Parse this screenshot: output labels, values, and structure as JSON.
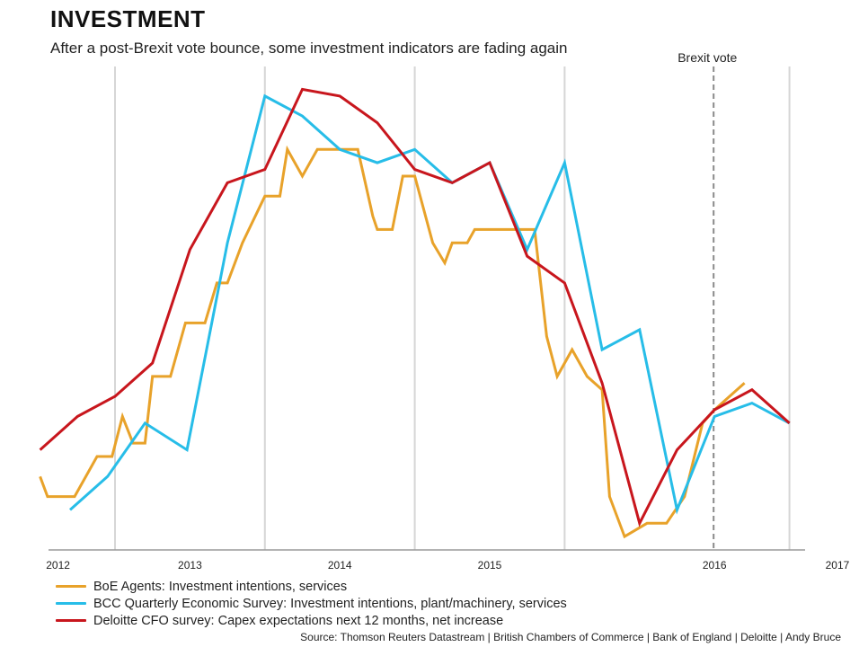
{
  "chart_data": {
    "type": "line",
    "title": "INVESTMENT",
    "subtitle": "After a post-Brexit vote bounce, some investment indicators are fading again",
    "x_unit": "quarter",
    "x_ticks": [
      "2012",
      "2013",
      "2014",
      "2015",
      "2016",
      "2017"
    ],
    "grid": "vertical",
    "y_axis_labels": false,
    "annotation": {
      "label": "Brexit vote",
      "x": 2016.0
    },
    "series": [
      {
        "name": "BoE Agents: Investment intentions, services",
        "color": "#e8a22a",
        "points": [
          [
            2011.5,
            1.1
          ],
          [
            2011.55,
            0.8
          ],
          [
            2011.73,
            0.8
          ],
          [
            2011.88,
            1.4
          ],
          [
            2011.98,
            1.4
          ],
          [
            2012.05,
            2.0
          ],
          [
            2012.12,
            1.6
          ],
          [
            2012.2,
            1.6
          ],
          [
            2012.25,
            2.6
          ],
          [
            2012.37,
            2.6
          ],
          [
            2012.47,
            3.4
          ],
          [
            2012.6,
            3.4
          ],
          [
            2012.68,
            4.0
          ],
          [
            2012.75,
            4.0
          ],
          [
            2012.85,
            4.6
          ],
          [
            2013.0,
            5.3
          ],
          [
            2013.1,
            5.3
          ],
          [
            2013.15,
            6.0
          ],
          [
            2013.25,
            5.6
          ],
          [
            2013.35,
            6.0
          ],
          [
            2013.5,
            6.0
          ],
          [
            2013.62,
            6.0
          ],
          [
            2013.72,
            5.0
          ],
          [
            2013.75,
            4.8
          ],
          [
            2013.85,
            4.8
          ],
          [
            2013.92,
            5.6
          ],
          [
            2014.0,
            5.6
          ],
          [
            2014.12,
            4.6
          ],
          [
            2014.2,
            4.3
          ],
          [
            2014.25,
            4.6
          ],
          [
            2014.35,
            4.6
          ],
          [
            2014.4,
            4.8
          ],
          [
            2014.55,
            4.8
          ],
          [
            2014.8,
            4.8
          ],
          [
            2014.88,
            3.2
          ],
          [
            2014.95,
            2.6
          ],
          [
            2015.05,
            3.0
          ],
          [
            2015.15,
            2.6
          ],
          [
            2015.25,
            2.4
          ],
          [
            2015.3,
            0.8
          ],
          [
            2015.4,
            0.2
          ],
          [
            2015.55,
            0.4
          ],
          [
            2015.68,
            0.4
          ],
          [
            2015.8,
            0.8
          ],
          [
            2015.92,
            1.9
          ],
          [
            2016.0,
            2.1
          ],
          [
            2016.1,
            2.3
          ],
          [
            2016.2,
            2.5
          ]
        ]
      },
      {
        "name": "BCC Quarterly Economic Survey: Investment intentions, plant/machinery, services",
        "color": "#27bde8",
        "points": [
          [
            2011.7,
            0.6
          ],
          [
            2011.95,
            1.1
          ],
          [
            2012.2,
            1.9
          ],
          [
            2012.48,
            1.5
          ],
          [
            2012.75,
            4.6
          ],
          [
            2013.0,
            6.8
          ],
          [
            2013.25,
            6.5
          ],
          [
            2013.5,
            6.0
          ],
          [
            2013.75,
            5.8
          ],
          [
            2014.0,
            6.0
          ],
          [
            2014.25,
            5.5
          ],
          [
            2014.5,
            5.8
          ],
          [
            2014.75,
            4.5
          ],
          [
            2015.0,
            5.8
          ],
          [
            2015.25,
            3.0
          ],
          [
            2015.5,
            3.3
          ],
          [
            2015.75,
            0.6
          ],
          [
            2016.0,
            2.0
          ],
          [
            2016.25,
            2.2
          ],
          [
            2016.5,
            1.9
          ]
        ]
      },
      {
        "name": "Deloitte CFO survey: Capex expectations next 12 months, net increase",
        "color": "#c8161d",
        "points": [
          [
            2011.5,
            1.5
          ],
          [
            2011.75,
            2.0
          ],
          [
            2012.0,
            2.3
          ],
          [
            2012.25,
            2.8
          ],
          [
            2012.5,
            4.5
          ],
          [
            2012.75,
            5.5
          ],
          [
            2013.0,
            5.7
          ],
          [
            2013.25,
            6.9
          ],
          [
            2013.5,
            6.8
          ],
          [
            2013.75,
            6.4
          ],
          [
            2014.0,
            5.7
          ],
          [
            2014.25,
            5.5
          ],
          [
            2014.5,
            5.8
          ],
          [
            2014.75,
            4.4
          ],
          [
            2015.0,
            4.0
          ],
          [
            2015.25,
            2.5
          ],
          [
            2015.5,
            0.4
          ],
          [
            2015.75,
            1.5
          ],
          [
            2016.0,
            2.1
          ],
          [
            2016.25,
            2.4
          ],
          [
            2016.5,
            1.9
          ]
        ]
      }
    ]
  },
  "source": "Source: Thomson Reuters Datastream | British Chambers of Commerce | Bank of England | Deloitte | Andy Bruce"
}
